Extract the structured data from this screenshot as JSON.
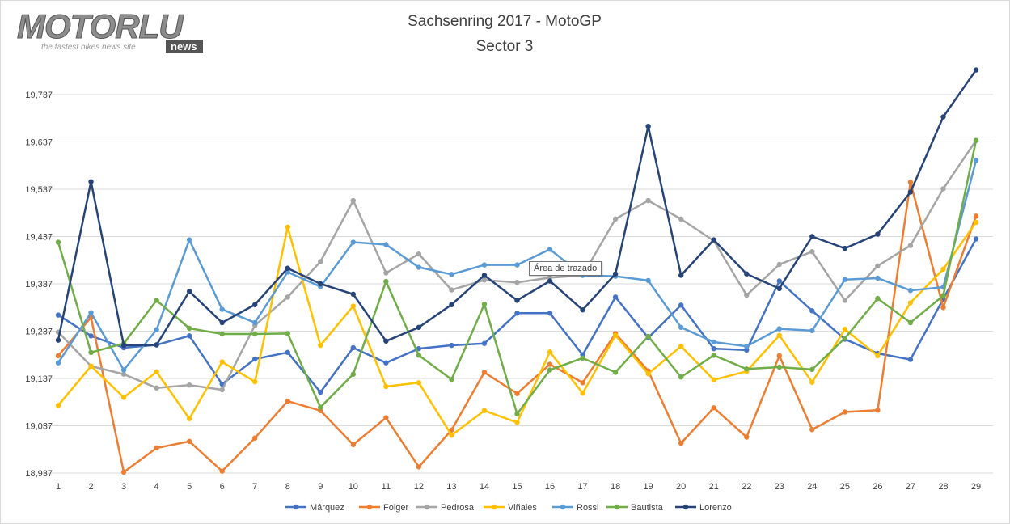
{
  "logo": {
    "word": "MOTORLU",
    "tagline": "the fastest bikes news site",
    "badge": "news"
  },
  "tooltip": {
    "text": "Área de trazado"
  },
  "chart_data": {
    "type": "line",
    "title": [
      "Sachsenring 2017 - MotoGP",
      "Sector 3"
    ],
    "xlabel": "",
    "ylabel": "",
    "ylim": [
      18.937,
      19.837
    ],
    "y_ticks": [
      "18,937",
      "19,037",
      "19,137",
      "19,237",
      "19,337",
      "19,437",
      "19,537",
      "19,637",
      "19,737"
    ],
    "categories": [
      "1",
      "2",
      "3",
      "4",
      "5",
      "6",
      "7",
      "8",
      "9",
      "10",
      "11",
      "12",
      "13",
      "14",
      "15",
      "16",
      "17",
      "18",
      "19",
      "20",
      "21",
      "22",
      "23",
      "24",
      "25",
      "26",
      "27",
      "28",
      "29"
    ],
    "grid": "horizontal",
    "legend": "bottom",
    "series": [
      {
        "name": "Márquez",
        "color": "#4472C4",
        "values": [
          19.271,
          19.227,
          19.202,
          19.208,
          19.227,
          19.125,
          19.178,
          19.192,
          19.108,
          19.202,
          19.17,
          19.2,
          19.207,
          19.211,
          19.275,
          19.275,
          19.187,
          19.309,
          19.223,
          19.292,
          19.2,
          19.197,
          19.343,
          19.28,
          19.22,
          19.19,
          19.177,
          19.305,
          19.432
        ]
      },
      {
        "name": "Folger",
        "color": "#ED7D31",
        "values": [
          19.185,
          19.266,
          18.939,
          18.99,
          19.004,
          18.941,
          19.011,
          19.089,
          19.069,
          18.997,
          19.054,
          18.95,
          19.028,
          19.15,
          19.105,
          19.167,
          19.128,
          19.232,
          19.153,
          19.0,
          19.075,
          19.013,
          19.185,
          19.029,
          19.066,
          19.07,
          19.552,
          19.287,
          19.48
        ]
      },
      {
        "name": "Pedrosa",
        "color": "#A5A5A5",
        "values": [
          19.235,
          19.163,
          19.146,
          19.117,
          19.123,
          19.113,
          19.249,
          19.309,
          19.384,
          19.513,
          19.36,
          19.4,
          19.324,
          19.345,
          19.34,
          19.35,
          19.355,
          19.474,
          19.513,
          19.474,
          19.428,
          19.313,
          19.378,
          19.405,
          19.302,
          19.375,
          19.418,
          19.538,
          19.64
        ]
      },
      {
        "name": "Viñales",
        "color": "#FFC000",
        "values": [
          19.08,
          19.163,
          19.097,
          19.151,
          19.052,
          19.172,
          19.13,
          19.457,
          19.207,
          19.29,
          19.12,
          19.128,
          19.017,
          19.069,
          19.044,
          19.193,
          19.106,
          19.228,
          19.147,
          19.205,
          19.134,
          19.152,
          19.228,
          19.129,
          19.241,
          19.185,
          19.297,
          19.368,
          19.467
        ]
      },
      {
        "name": "Rossi",
        "color": "#5B9BD5",
        "values": [
          19.17,
          19.276,
          19.155,
          19.24,
          19.43,
          19.283,
          19.255,
          19.362,
          19.331,
          19.425,
          19.42,
          19.372,
          19.357,
          19.377,
          19.377,
          19.41,
          19.355,
          19.353,
          19.344,
          19.245,
          19.214,
          19.205,
          19.242,
          19.238,
          19.346,
          19.349,
          19.323,
          19.33,
          19.598
        ]
      },
      {
        "name": "Bautista",
        "color": "#70AD47",
        "values": [
          19.425,
          19.192,
          19.211,
          19.302,
          19.243,
          19.231,
          19.231,
          19.232,
          19.076,
          19.146,
          19.342,
          19.186,
          19.135,
          19.294,
          19.062,
          19.155,
          19.18,
          19.15,
          19.226,
          19.14,
          19.186,
          19.157,
          19.161,
          19.156,
          19.222,
          19.306,
          19.255,
          19.312,
          19.64
        ]
      },
      {
        "name": "Lorenzo",
        "color": "#264478",
        "values": [
          19.218,
          19.553,
          19.207,
          19.208,
          19.321,
          19.255,
          19.293,
          19.37,
          19.337,
          19.315,
          19.216,
          19.245,
          19.293,
          19.355,
          19.302,
          19.343,
          19.282,
          19.358,
          19.67,
          19.355,
          19.43,
          19.358,
          19.327,
          19.437,
          19.412,
          19.442,
          19.531,
          19.69,
          19.789
        ]
      }
    ]
  }
}
